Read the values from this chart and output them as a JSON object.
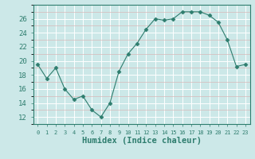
{
  "x": [
    0,
    1,
    2,
    3,
    4,
    5,
    6,
    7,
    8,
    9,
    10,
    11,
    12,
    13,
    14,
    15,
    16,
    17,
    18,
    19,
    20,
    21,
    22,
    23
  ],
  "y": [
    19.5,
    17.5,
    19.0,
    16.0,
    14.5,
    15.0,
    13.0,
    12.0,
    14.0,
    18.5,
    21.0,
    22.5,
    24.5,
    26.0,
    25.8,
    26.0,
    27.0,
    27.0,
    27.0,
    26.5,
    25.5,
    23.0,
    19.2,
    19.5
  ],
  "line_color": "#2e7d6e",
  "marker": "D",
  "marker_size": 2.5,
  "bg_color": "#cce8e8",
  "grid_color_major": "#ffffff",
  "grid_color_minor": "#d8b8b8",
  "tick_color": "#2e7d6e",
  "xlabel": "Humidex (Indice chaleur)",
  "xlabel_fontsize": 7.5,
  "ylabel_ticks": [
    12,
    14,
    16,
    18,
    20,
    22,
    24,
    26
  ],
  "ylim": [
    11.0,
    28.0
  ],
  "xlim": [
    -0.5,
    23.5
  ],
  "xticks": [
    0,
    1,
    2,
    3,
    4,
    5,
    6,
    7,
    8,
    9,
    10,
    11,
    12,
    13,
    14,
    15,
    16,
    17,
    18,
    19,
    20,
    21,
    22,
    23
  ]
}
